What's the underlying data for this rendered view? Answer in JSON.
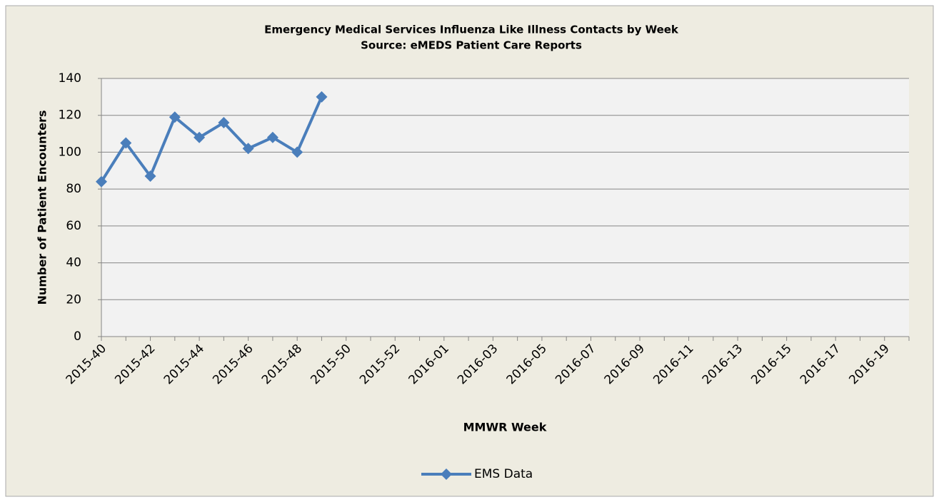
{
  "chart_data": {
    "type": "line",
    "title": "Emergency Medical Services Influenza Like Illness Contacts by Week",
    "subtitle": "Source: eMEDS Patient Care Reports",
    "x_label": "MMWR Week",
    "y_label": "Number of Patient Encounters",
    "categories": [
      "2015-40",
      null,
      "2015-42",
      null,
      "2015-44",
      null,
      "2015-46",
      null,
      "2015-48",
      null,
      "2015-50",
      null,
      "2015-52",
      null,
      "2016-01",
      null,
      "2016-03",
      null,
      "2016-05",
      null,
      "2016-07",
      null,
      "2016-09",
      null,
      "2016-11",
      null,
      "2016-13",
      null,
      "2016-15",
      null,
      "2016-17",
      null,
      "2016-19",
      null
    ],
    "series": [
      {
        "name": "EMS Data",
        "color": "#4a7ebb",
        "values": [
          84,
          105,
          87,
          119,
          108,
          116,
          102,
          108,
          100,
          130,
          null,
          null,
          null,
          null,
          null,
          null,
          null,
          null,
          null,
          null,
          null,
          null,
          null,
          null,
          null,
          null,
          null,
          null,
          null,
          null,
          null,
          null,
          null,
          null
        ]
      }
    ],
    "ylim": [
      0,
      140
    ],
    "yticks": [
      0,
      20,
      40,
      60,
      80,
      100,
      120,
      140
    ],
    "grid": true,
    "legend": "bottom"
  }
}
